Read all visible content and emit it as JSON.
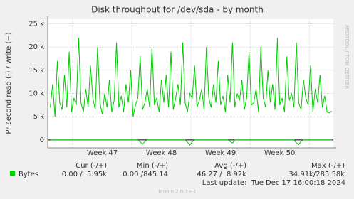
{
  "chart_data": {
    "type": "line",
    "title": "Disk throughput for /dev/sda - by month",
    "ylabel": "Pr second read (-) / write (+)",
    "watermark": "RRDTOOL / TOBI OETIKER",
    "ylim": [
      -1700,
      26000
    ],
    "yticks": [
      0,
      {
        "value": 5000,
        "label": "5 k"
      },
      {
        "value": 10000,
        "label": "10 k"
      },
      {
        "value": 15000,
        "label": "15 k"
      },
      {
        "value": 20000,
        "label": "20 k"
      },
      {
        "value": 25000,
        "label": "25 k"
      }
    ],
    "xlim": [
      0,
      33.8
    ],
    "xgrid": [
      2.95,
      9.95,
      16.95,
      23.95,
      30.95
    ],
    "xticks": [
      {
        "value": 6.45,
        "label": "Week 47"
      },
      {
        "value": 13.45,
        "label": "Week 48"
      },
      {
        "value": 20.45,
        "label": "Week 49"
      },
      {
        "value": 27.45,
        "label": "Week 50"
      }
    ],
    "grid": true,
    "x": [
      0.3,
      0.58,
      0.86,
      1.14,
      1.42,
      1.7,
      1.98,
      2.26,
      2.54,
      2.82,
      3.1,
      3.38,
      3.66,
      3.94,
      4.22,
      4.5,
      4.78,
      5.06,
      5.34,
      5.62,
      5.9,
      6.18,
      6.46,
      6.74,
      7.02,
      7.3,
      7.58,
      7.86,
      8.14,
      8.42,
      8.7,
      8.98,
      9.26,
      9.54,
      9.82,
      10.1,
      10.38,
      10.66,
      10.94,
      11.22,
      11.5,
      11.78,
      12.06,
      12.34,
      12.62,
      12.9,
      13.18,
      13.46,
      13.74,
      14.02,
      14.3,
      14.58,
      14.86,
      15.14,
      15.42,
      15.7,
      15.98,
      16.26,
      16.54,
      16.82,
      17.1,
      17.38,
      17.66,
      17.94,
      18.22,
      18.5,
      18.78,
      19.06,
      19.34,
      19.62,
      19.9,
      20.18,
      20.46,
      20.74,
      21.02,
      21.3,
      21.58,
      21.86,
      22.14,
      22.42,
      22.7,
      22.98,
      23.26,
      23.54,
      23.82,
      24.1,
      24.38,
      24.66,
      24.94,
      25.22,
      25.5,
      25.78,
      26.06,
      26.34,
      26.62,
      26.9,
      27.18,
      27.46,
      27.74,
      28.02,
      28.3,
      28.58,
      28.86,
      29.14,
      29.42,
      29.7,
      29.98,
      30.26,
      30.54,
      30.82,
      31.1,
      31.38,
      31.66,
      31.94,
      32.22,
      32.5,
      32.78,
      33.06,
      33.34,
      33.62
    ],
    "series": [
      {
        "name": "Bytes",
        "color": "#00cc00",
        "values": [
          7000,
          12000,
          5000,
          17000,
          8000,
          6500,
          14000,
          7000,
          19000,
          6000,
          9000,
          7500,
          22000,
          8000,
          6000,
          11000,
          7000,
          16000,
          9000,
          6500,
          20000,
          8000,
          5500,
          10000,
          7000,
          13000,
          6000,
          8500,
          21000,
          7000,
          9500,
          6000,
          12000,
          8000,
          15000,
          5000,
          7500,
          9000,
          18000,
          6500,
          8000,
          11000,
          7000,
          20000,
          7500,
          9000,
          6000,
          13000,
          8000,
          14000,
          7000,
          19000,
          6500,
          9000,
          12000,
          7500,
          21000,
          8000,
          6000,
          10000,
          9000,
          16000,
          7000,
          8500,
          11000,
          6500,
          20000,
          9000,
          7000,
          12000,
          8000,
          17000,
          7500,
          9500,
          6000,
          14000,
          8000,
          21000,
          7000,
          10000,
          8500,
          13000,
          6500,
          9000,
          19000,
          7500,
          8000,
          11000,
          6000,
          20000,
          9000,
          7000,
          15000,
          8000,
          12000,
          6500,
          22000,
          7500,
          9000,
          6000,
          18000,
          8500,
          10000,
          7000,
          21000,
          8000,
          6500,
          13000,
          9000,
          7500,
          16000,
          6000,
          11000,
          8000,
          14000,
          7000,
          9500,
          6000,
          5800,
          6200
        ]
      },
      {
        "color": "#00cc00",
        "values": [
          0,
          0,
          0,
          0,
          0,
          0,
          0,
          0,
          0,
          0,
          0,
          0,
          0,
          0,
          0,
          0,
          0,
          0,
          0,
          0,
          0,
          0,
          0,
          0,
          0,
          0,
          0,
          0,
          0,
          0,
          0,
          0,
          0,
          0,
          0,
          0,
          0,
          0,
          -400,
          -900,
          -300,
          0,
          0,
          0,
          0,
          0,
          0,
          0,
          0,
          0,
          0,
          0,
          0,
          0,
          0,
          0,
          0,
          0,
          -500,
          -1100,
          -400,
          0,
          0,
          0,
          0,
          0,
          0,
          0,
          0,
          0,
          0,
          0,
          0,
          0,
          0,
          0,
          -300,
          -700,
          0,
          0,
          0,
          0,
          0,
          0,
          0,
          0,
          0,
          0,
          0,
          0,
          0,
          0,
          0,
          0,
          0,
          0,
          0,
          0,
          0,
          0,
          0,
          0,
          0,
          0,
          -600,
          -1000,
          -300,
          0,
          0,
          0,
          0,
          0,
          0,
          0,
          0,
          0,
          0,
          0,
          0,
          0
        ]
      }
    ],
    "summary_headers": [
      "Cur (-/+)",
      "Min (-/+)",
      "Avg (-/+)",
      "Max (-/+)"
    ],
    "summary": [
      "0.00 /  5.95k",
      "0.00 /845.14",
      "46.27 /  8.92k",
      "34.91k/285.58k"
    ],
    "last_update": "Last update:  Tue Dec 17 16:00:18 2024",
    "footer": "Munin 2.0.33-1"
  }
}
